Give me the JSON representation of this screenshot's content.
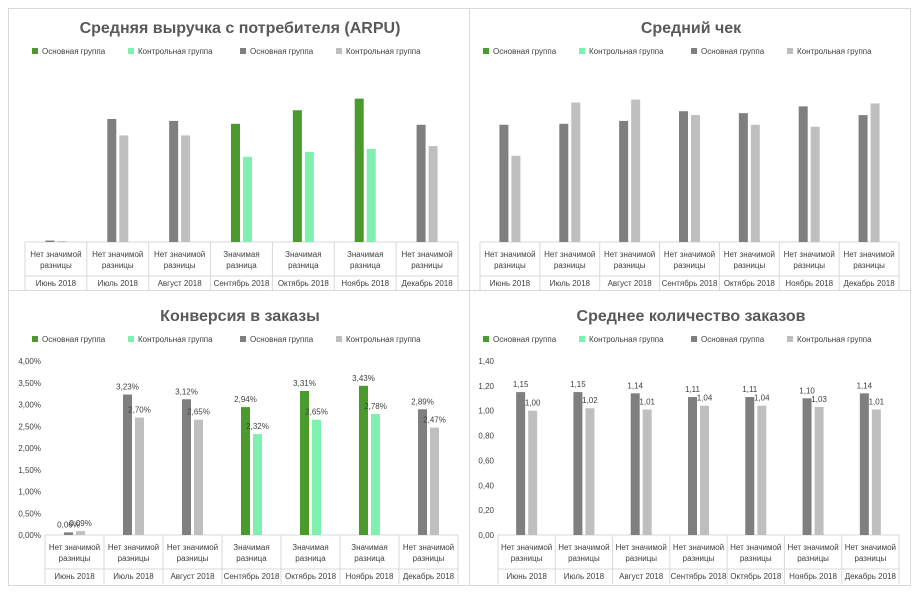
{
  "palette": {
    "main_green": "#4a9a2e",
    "control_green": "#7ff0b0",
    "main_gray": "#7f7f7f",
    "control_gray": "#bfbfbf",
    "axis": "#d9d9d9",
    "text": "#404040",
    "title": "#595959"
  },
  "chart_data": [
    {
      "type": "bar",
      "title": "Средняя выручка с потребителя (ARPU)",
      "legend": [
        "Основная группа",
        "Контрольная группа",
        "Основная группа",
        "Контрольная группа"
      ],
      "legend_position": "top",
      "y_axis_visible": false,
      "data_labels": false,
      "categories": [
        {
          "group": "Июнь 2018",
          "label": [
            "Нет значимой",
            "разницы"
          ],
          "highlight": false
        },
        {
          "group": "Июль 2018",
          "label": [
            "Нет значимой",
            "разницы"
          ],
          "highlight": false
        },
        {
          "group": "Август 2018",
          "label": [
            "Нет значимой",
            "разницы"
          ],
          "highlight": false
        },
        {
          "group": "Сентябрь 2018",
          "label": [
            "Значимая",
            "разница"
          ],
          "highlight": true
        },
        {
          "group": "Октябрь 2018",
          "label": [
            "Значимая",
            "разница"
          ],
          "highlight": true
        },
        {
          "group": "Ноябрь 2018",
          "label": [
            "Значимая",
            "разница"
          ],
          "highlight": true
        },
        {
          "group": "Декабрь 2018",
          "label": [
            "Нет значимой",
            "разницы"
          ],
          "highlight": false
        }
      ],
      "series": [
        {
          "values": [
            1.5,
            127,
            125,
            122,
            136,
            148,
            121
          ]
        },
        {
          "values": [
            1.0,
            110,
            110,
            88,
            93,
            96,
            99
          ]
        }
      ],
      "ylim": [
        0,
        160
      ]
    },
    {
      "type": "bar",
      "title": "Средний чек",
      "legend": [
        "Основная группа",
        "Контрольная группа",
        "Основная группа",
        "Контрольная группа"
      ],
      "legend_position": "top",
      "y_axis_visible": false,
      "data_labels": false,
      "categories": [
        {
          "group": "Июнь 2018",
          "label": [
            "Нет значимой",
            "разницы"
          ],
          "highlight": false
        },
        {
          "group": "Июль 2018",
          "label": [
            "Нет значимой",
            "разницы"
          ],
          "highlight": false
        },
        {
          "group": "Август 2018",
          "label": [
            "Нет значимой",
            "разницы"
          ],
          "highlight": false
        },
        {
          "group": "Сентябрь 2018",
          "label": [
            "Нет значимой",
            "разницы"
          ],
          "highlight": false
        },
        {
          "group": "Октябрь 2018",
          "label": [
            "Нет значимой",
            "разницы"
          ],
          "highlight": false
        },
        {
          "group": "Ноябрь 2018",
          "label": [
            "Нет значимой",
            "разницы"
          ],
          "highlight": false
        },
        {
          "group": "Декабрь 2018",
          "label": [
            "Нет значимой",
            "разницы"
          ],
          "highlight": false
        }
      ],
      "series": [
        {
          "values": [
            121,
            122,
            125,
            135,
            133,
            140,
            131
          ]
        },
        {
          "values": [
            89,
            144,
            147,
            131,
            121,
            119,
            143
          ]
        }
      ],
      "ylim": [
        0,
        160
      ]
    },
    {
      "type": "bar",
      "title": "Конверсия в заказы",
      "legend": [
        "Основная группа",
        "Контрольная группа",
        "Основная группа",
        "Контрольная группа"
      ],
      "legend_position": "top",
      "y_axis_visible": true,
      "data_labels": true,
      "y_ticks": [
        "0,00%",
        "0,50%",
        "1,00%",
        "1,50%",
        "2,00%",
        "2,50%",
        "3,00%",
        "3,50%",
        "4,00%"
      ],
      "categories": [
        {
          "group": "Июнь 2018",
          "label": [
            "Нет значимой",
            "разницы"
          ],
          "highlight": false
        },
        {
          "group": "Июль 2018",
          "label": [
            "Нет значимой",
            "разницы"
          ],
          "highlight": false
        },
        {
          "group": "Август 2018",
          "label": [
            "Нет значимой",
            "разницы"
          ],
          "highlight": false
        },
        {
          "group": "Сентябрь 2018",
          "label": [
            "Значимая",
            "разница"
          ],
          "highlight": true
        },
        {
          "group": "Октябрь 2018",
          "label": [
            "Значимая",
            "разница"
          ],
          "highlight": true
        },
        {
          "group": "Ноябрь 2018",
          "label": [
            "Значимая",
            "разница"
          ],
          "highlight": true
        },
        {
          "group": "Декабрь 2018",
          "label": [
            "Нет значимой",
            "разницы"
          ],
          "highlight": false
        }
      ],
      "series": [
        {
          "values": [
            0.06,
            3.23,
            3.12,
            2.94,
            3.31,
            3.43,
            2.89
          ],
          "labels": [
            "0,06%",
            "3,23%",
            "3,12%",
            "2,94%",
            "3,31%",
            "3,43%",
            "2,89%"
          ]
        },
        {
          "values": [
            0.09,
            2.7,
            2.65,
            2.32,
            2.65,
            2.78,
            2.47
          ],
          "labels": [
            "0,09%",
            "2,70%",
            "2,65%",
            "2,32%",
            "2,65%",
            "2,78%",
            "2,47%"
          ]
        }
      ],
      "ylim": [
        0,
        4
      ]
    },
    {
      "type": "bar",
      "title": "Среднее количество заказов",
      "legend": [
        "Основная группа",
        "Контрольная группа",
        "Основная группа",
        "Контрольная группа"
      ],
      "legend_position": "top",
      "y_axis_visible": true,
      "data_labels": true,
      "y_ticks": [
        "0,00",
        "0,20",
        "0,40",
        "0,60",
        "0,80",
        "1,00",
        "1,20",
        "1,40"
      ],
      "categories": [
        {
          "group": "Июнь 2018",
          "label": [
            "Нет значимой",
            "разницы"
          ],
          "highlight": false
        },
        {
          "group": "Июль 2018",
          "label": [
            "Нет значимой",
            "разницы"
          ],
          "highlight": false
        },
        {
          "group": "Август 2018",
          "label": [
            "Нет значимой",
            "разницы"
          ],
          "highlight": false
        },
        {
          "group": "Сентябрь 2018",
          "label": [
            "Нет значимой",
            "разницы"
          ],
          "highlight": false
        },
        {
          "group": "Октябрь 2018",
          "label": [
            "Нет значимой",
            "разницы"
          ],
          "highlight": false
        },
        {
          "group": "Ноябрь 2018",
          "label": [
            "Нет значимой",
            "разницы"
          ],
          "highlight": false
        },
        {
          "group": "Декабрь 2018",
          "label": [
            "Нет значимой",
            "разницы"
          ],
          "highlight": false
        }
      ],
      "series": [
        {
          "values": [
            1.15,
            1.15,
            1.14,
            1.11,
            1.11,
            1.1,
            1.14
          ],
          "labels": [
            "1,15",
            "1,15",
            "1,14",
            "1,11",
            "1,11",
            "1,10",
            "1,14"
          ]
        },
        {
          "values": [
            1.0,
            1.02,
            1.01,
            1.04,
            1.04,
            1.03,
            1.01
          ],
          "labels": [
            "1,00",
            "1,02",
            "1,01",
            "1,04",
            "1,04",
            "1,03",
            "1,01"
          ]
        }
      ],
      "ylim": [
        0,
        1.4
      ]
    }
  ]
}
